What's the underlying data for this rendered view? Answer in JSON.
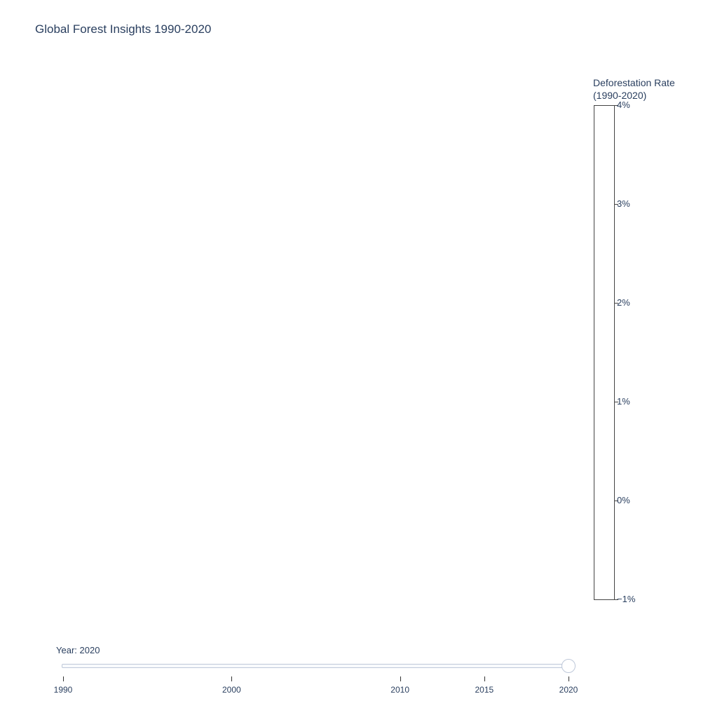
{
  "chart_data": {
    "type": "choropleth",
    "title": "Global Forest Insights 1990-2020",
    "colorbar": {
      "title_lines": [
        "Deforestation Rate",
        "(1990-2020)"
      ],
      "range": [
        -1,
        4
      ],
      "ticks": [
        {
          "value": 4,
          "label": "4%"
        },
        {
          "value": 3,
          "label": "3%"
        },
        {
          "value": 2,
          "label": "2%"
        },
        {
          "value": 1,
          "label": "1%"
        },
        {
          "value": 0,
          "label": "0%"
        },
        {
          "value": -1,
          "label": "−1%"
        }
      ]
    },
    "slider": {
      "prefix": "Year: ",
      "current_value": "2020",
      "current": 2020,
      "range": [
        1990,
        2020
      ],
      "steps": [
        {
          "value": 1990,
          "label": "1990"
        },
        {
          "value": 2000,
          "label": "2000"
        },
        {
          "value": 2010,
          "label": "2010"
        },
        {
          "value": 2015,
          "label": "2015"
        },
        {
          "value": 2020,
          "label": "2020"
        }
      ]
    }
  }
}
